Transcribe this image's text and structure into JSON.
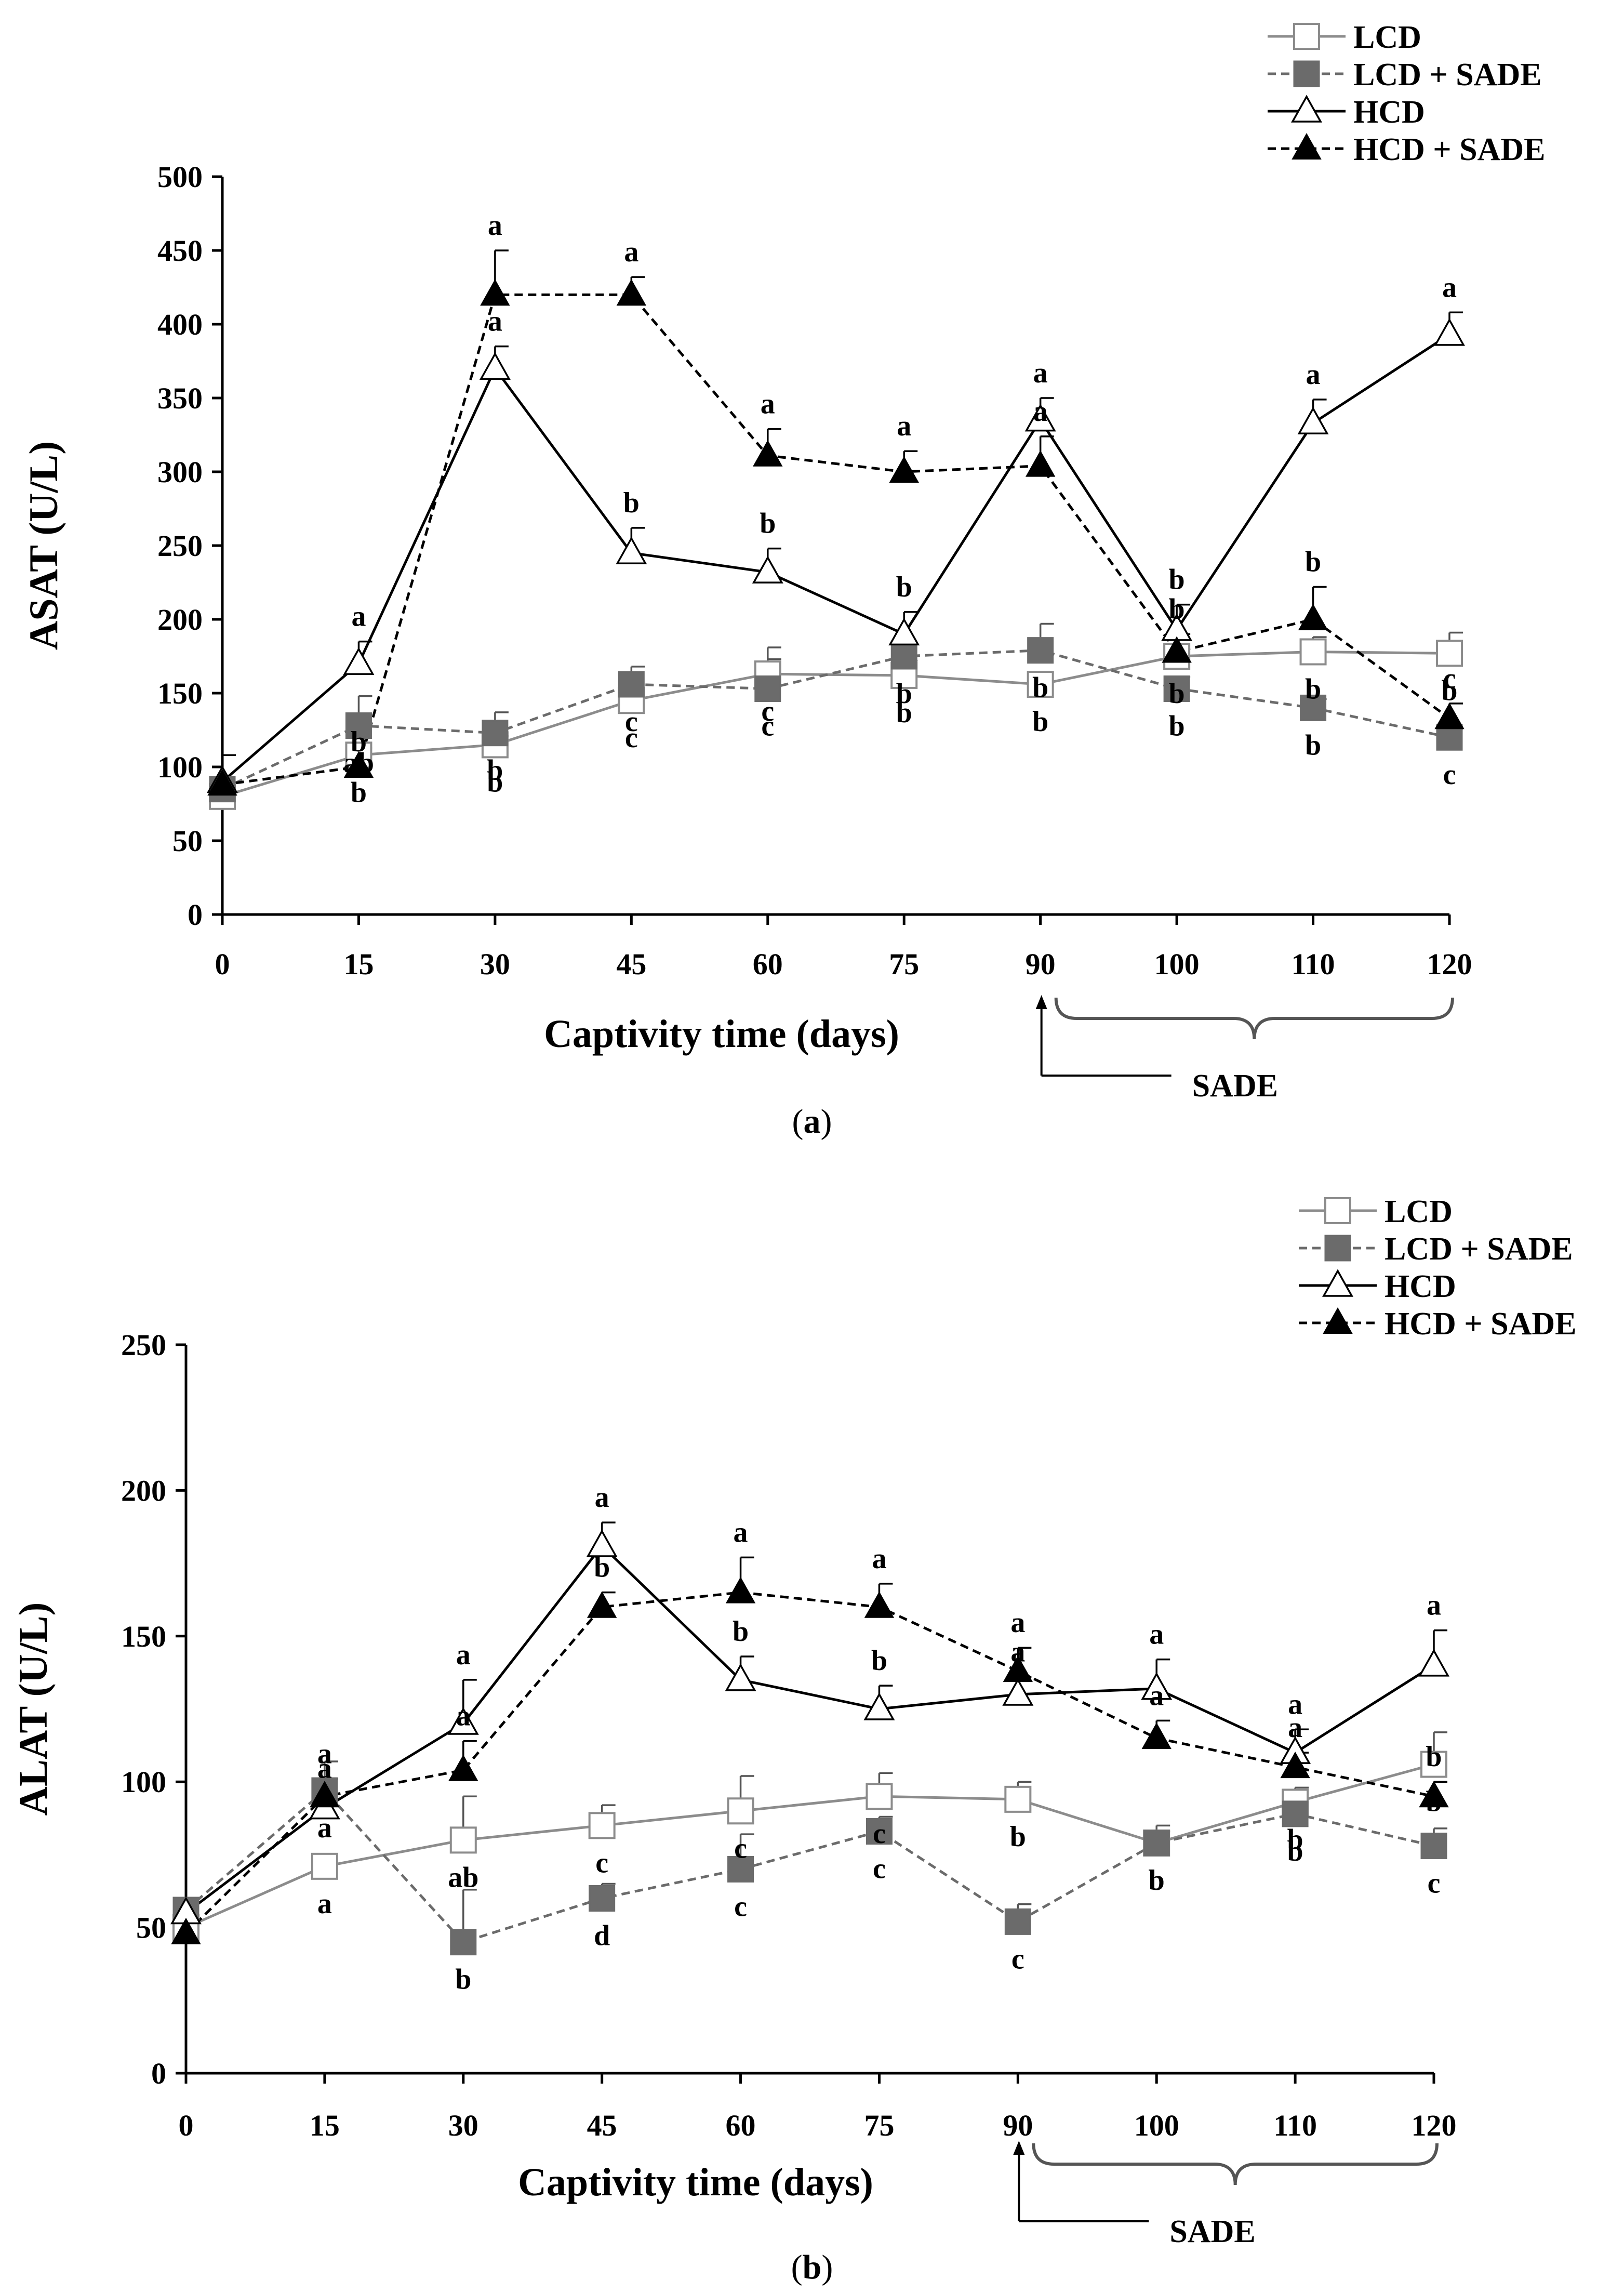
{
  "chart_data": [
    {
      "type": "line",
      "panel_label": "a",
      "xlabel": "Captivity time (days)",
      "ylabel": "ASAT (U/L)",
      "ylim": [
        0,
        500
      ],
      "yticks": [
        0,
        50,
        100,
        150,
        200,
        250,
        300,
        350,
        400,
        450,
        500
      ],
      "categories": [
        "0",
        "15",
        "30",
        "45",
        "60",
        "75",
        "90",
        "100",
        "110",
        "120"
      ],
      "treatment_bracket": {
        "label": "SADE",
        "from": "90",
        "to": "120"
      },
      "series": [
        {
          "name": "LCD",
          "marker": "open-square",
          "line": "solid",
          "color": "#8c8c8c",
          "values": [
            80,
            108,
            115,
            145,
            163,
            162,
            156,
            175,
            178,
            177
          ],
          "errors": [
            0,
            5,
            6,
            6,
            18,
            10,
            8,
            5,
            10,
            14
          ],
          "labels": [
            "",
            "b",
            "b",
            "c",
            "c",
            "b",
            "b",
            "b",
            "b",
            "b"
          ]
        },
        {
          "name": "LCD + SADE",
          "marker": "filled-square",
          "line": "dashed",
          "color": "#6b6b6b",
          "values": [
            85,
            128,
            123,
            156,
            153,
            175,
            179,
            153,
            140,
            120
          ],
          "errors": [
            0,
            20,
            14,
            12,
            20,
            8,
            18,
            8,
            6,
            6
          ],
          "labels": [
            "",
            "ab",
            "b",
            "c",
            "c",
            "b",
            "b",
            "b",
            "b",
            "c"
          ]
        },
        {
          "name": "HCD",
          "marker": "open-triangle",
          "line": "solid",
          "color": "#000000",
          "values": [
            90,
            170,
            370,
            245,
            232,
            190,
            335,
            193,
            333,
            393
          ],
          "errors": [
            18,
            15,
            15,
            17,
            16,
            15,
            15,
            17,
            16,
            15
          ],
          "labels": [
            "",
            "a",
            "a",
            "b",
            "b",
            "b",
            "a",
            "b",
            "a",
            "a"
          ]
        },
        {
          "name": "HCD + SADE",
          "marker": "filled-triangle",
          "line": "dashed",
          "color": "#000000",
          "values": [
            88,
            100,
            420,
            420,
            311,
            300,
            304,
            178,
            200,
            133
          ],
          "errors": [
            0,
            0,
            30,
            12,
            18,
            14,
            20,
            12,
            22,
            10
          ],
          "labels": [
            "",
            "b",
            "a",
            "a",
            "a",
            "a",
            "a",
            "b",
            "b",
            "c"
          ]
        }
      ]
    },
    {
      "type": "line",
      "panel_label": "b",
      "xlabel": "Captivity time (days)",
      "ylabel": "ALAT (U/L)",
      "ylim": [
        0,
        250
      ],
      "yticks": [
        0,
        50,
        100,
        150,
        200,
        250
      ],
      "categories": [
        "0",
        "15",
        "30",
        "45",
        "60",
        "75",
        "90",
        "100",
        "110",
        "120"
      ],
      "treatment_bracket": {
        "label": "SADE",
        "from": "90",
        "to": "120"
      },
      "series": [
        {
          "name": "LCD",
          "marker": "open-square",
          "line": "solid",
          "color": "#8c8c8c",
          "values": [
            50,
            71,
            80,
            85,
            90,
            95,
            94,
            79,
            93,
            106
          ],
          "errors": [
            0,
            0,
            15,
            7,
            12,
            8,
            6,
            6,
            5,
            11
          ],
          "labels": [
            "",
            "a",
            "ab",
            "c",
            "c",
            "c",
            "b",
            "b",
            "b",
            "b"
          ]
        },
        {
          "name": "LCD + SADE",
          "marker": "filled-square",
          "line": "dashed",
          "color": "#6b6b6b",
          "values": [
            56,
            97,
            45,
            60,
            70,
            83,
            52,
            79,
            89,
            78
          ],
          "errors": [
            0,
            10,
            18,
            5,
            12,
            5,
            6,
            4,
            4,
            6
          ],
          "labels": [
            "",
            "a",
            "b",
            "d",
            "c",
            "c",
            "c",
            "b",
            "b",
            "c"
          ]
        },
        {
          "name": "HCD",
          "marker": "open-triangle",
          "line": "solid",
          "color": "#000000",
          "values": [
            55,
            91,
            120,
            181,
            135,
            125,
            130,
            132,
            110,
            140
          ],
          "errors": [
            0,
            5,
            15,
            8,
            8,
            8,
            6,
            10,
            8,
            12
          ],
          "labels": [
            "",
            "a",
            "a",
            "a",
            "b",
            "b",
            "a",
            "a",
            "a",
            "a"
          ]
        },
        {
          "name": "HCD + SADE",
          "marker": "filled-triangle",
          "line": "dashed",
          "color": "#000000",
          "values": [
            48,
            95,
            104,
            160,
            165,
            160,
            138,
            115,
            105,
            95
          ],
          "errors": [
            0,
            6,
            10,
            5,
            12,
            8,
            8,
            6,
            5,
            5
          ],
          "labels": [
            "",
            "a",
            "a",
            "b",
            "a",
            "a",
            "a",
            "a",
            "a",
            "b"
          ]
        }
      ]
    }
  ]
}
